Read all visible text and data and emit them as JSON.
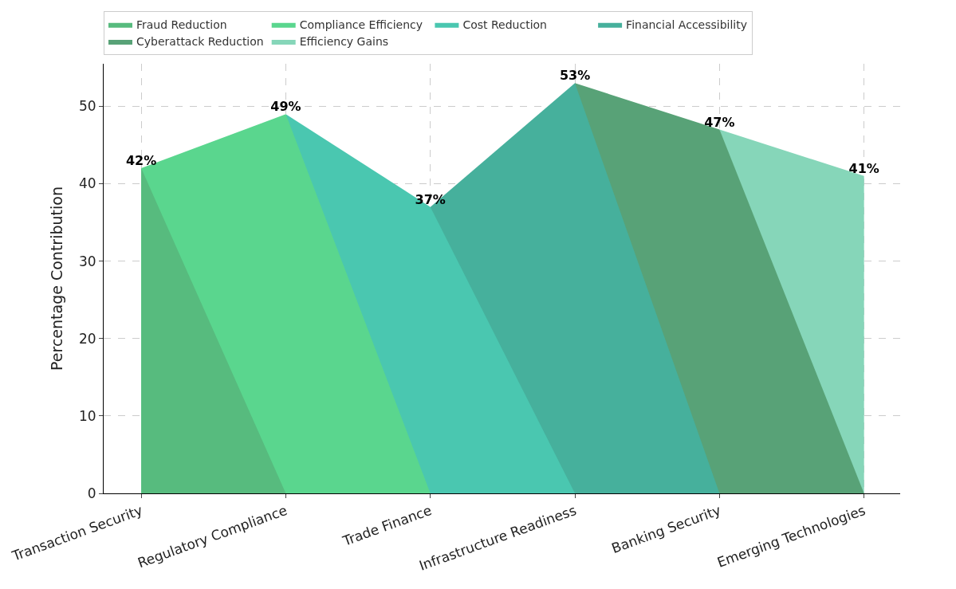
{
  "chart_data": {
    "type": "area",
    "ylabel": "Percentage Contribution",
    "categories": [
      "Transaction Security",
      "Regulatory Compliance",
      "Trade Finance",
      "Infrastructure Readiness",
      "Banking Security",
      "Emerging Technologies"
    ],
    "series": [
      {
        "name": "Fraud Reduction",
        "color": "#57bb7e",
        "values": [
          42,
          0,
          null,
          null,
          null,
          null
        ],
        "value_labels": [
          "42%",
          null,
          null,
          null,
          null,
          null
        ]
      },
      {
        "name": "Compliance Efficiency",
        "color": "#5ad68e",
        "values": [
          42,
          49,
          0,
          null,
          null,
          null
        ],
        "value_labels": [
          null,
          "49%",
          null,
          null,
          null,
          null
        ]
      },
      {
        "name": "Cost Reduction",
        "color": "#4ac7b0",
        "values": [
          null,
          49,
          37,
          0,
          null,
          null
        ],
        "value_labels": [
          null,
          null,
          "37%",
          null,
          null,
          null
        ]
      },
      {
        "name": "Financial Accessibility",
        "color": "#46b09c",
        "values": [
          null,
          null,
          37,
          53,
          0,
          null
        ],
        "value_labels": [
          null,
          null,
          null,
          "53%",
          null,
          null
        ]
      },
      {
        "name": "Cyberattack Reduction",
        "color": "#58a277",
        "values": [
          null,
          null,
          null,
          53,
          47,
          0
        ],
        "value_labels": [
          null,
          null,
          null,
          null,
          "47%",
          null
        ]
      },
      {
        "name": "Efficiency Gains",
        "color": "#86d6b9",
        "values": [
          null,
          null,
          null,
          null,
          47,
          41
        ],
        "value_labels": [
          null,
          null,
          null,
          null,
          null,
          "41%"
        ]
      }
    ],
    "ylim": [
      0,
      55.5
    ],
    "yticks": [
      0,
      10,
      20,
      30,
      40,
      50
    ],
    "grid": true,
    "legend": "top left"
  }
}
